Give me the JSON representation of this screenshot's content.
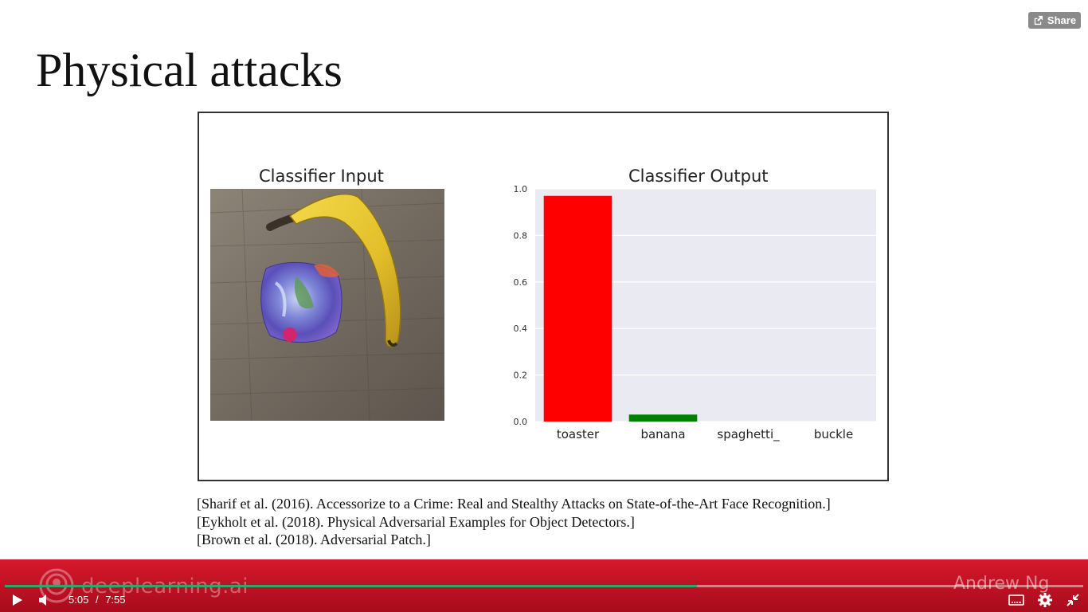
{
  "slide": {
    "title": "Physical attacks",
    "share_label": "Share",
    "figure": {
      "input_title": "Classifier Input",
      "output_title": "Classifier Output"
    },
    "references": [
      "[Sharif et al. (2016). Accessorize to a Crime: Real and Stealthy Attacks on State-of-the-Art Face Recognition.]",
      "[Eykholt et al. (2018). Physical Adversarial Examples for Object Detectors.]",
      "[Brown et al. (2018). Adversarial Patch.]"
    ]
  },
  "chart_data": {
    "type": "bar",
    "title": "Classifier Output",
    "categories": [
      "toaster",
      "banana",
      "spaghetti_",
      "buckle"
    ],
    "values": [
      0.97,
      0.03,
      0.0,
      0.0
    ],
    "bar_colors": [
      "#ff0000",
      "#008000",
      "#0000ff",
      "#bf00bf"
    ],
    "ylim": [
      0,
      1.0
    ],
    "yticks": [
      "0.0",
      "0.2",
      "0.4",
      "0.6",
      "0.8",
      "1.0"
    ],
    "grid": true,
    "plot_background": "#eaeaf2"
  },
  "player": {
    "brand": "deeplearning.ai",
    "author": "Andrew Ng",
    "current_time": "5:05",
    "separator": "/",
    "duration": "7:55",
    "progress_fraction": 0.642,
    "accent_color": "#2ca771",
    "bar_color": "#c01224",
    "controls": [
      "play-icon",
      "volume-icon",
      "captions-icon",
      "settings-icon",
      "exit-fullscreen-icon"
    ]
  }
}
